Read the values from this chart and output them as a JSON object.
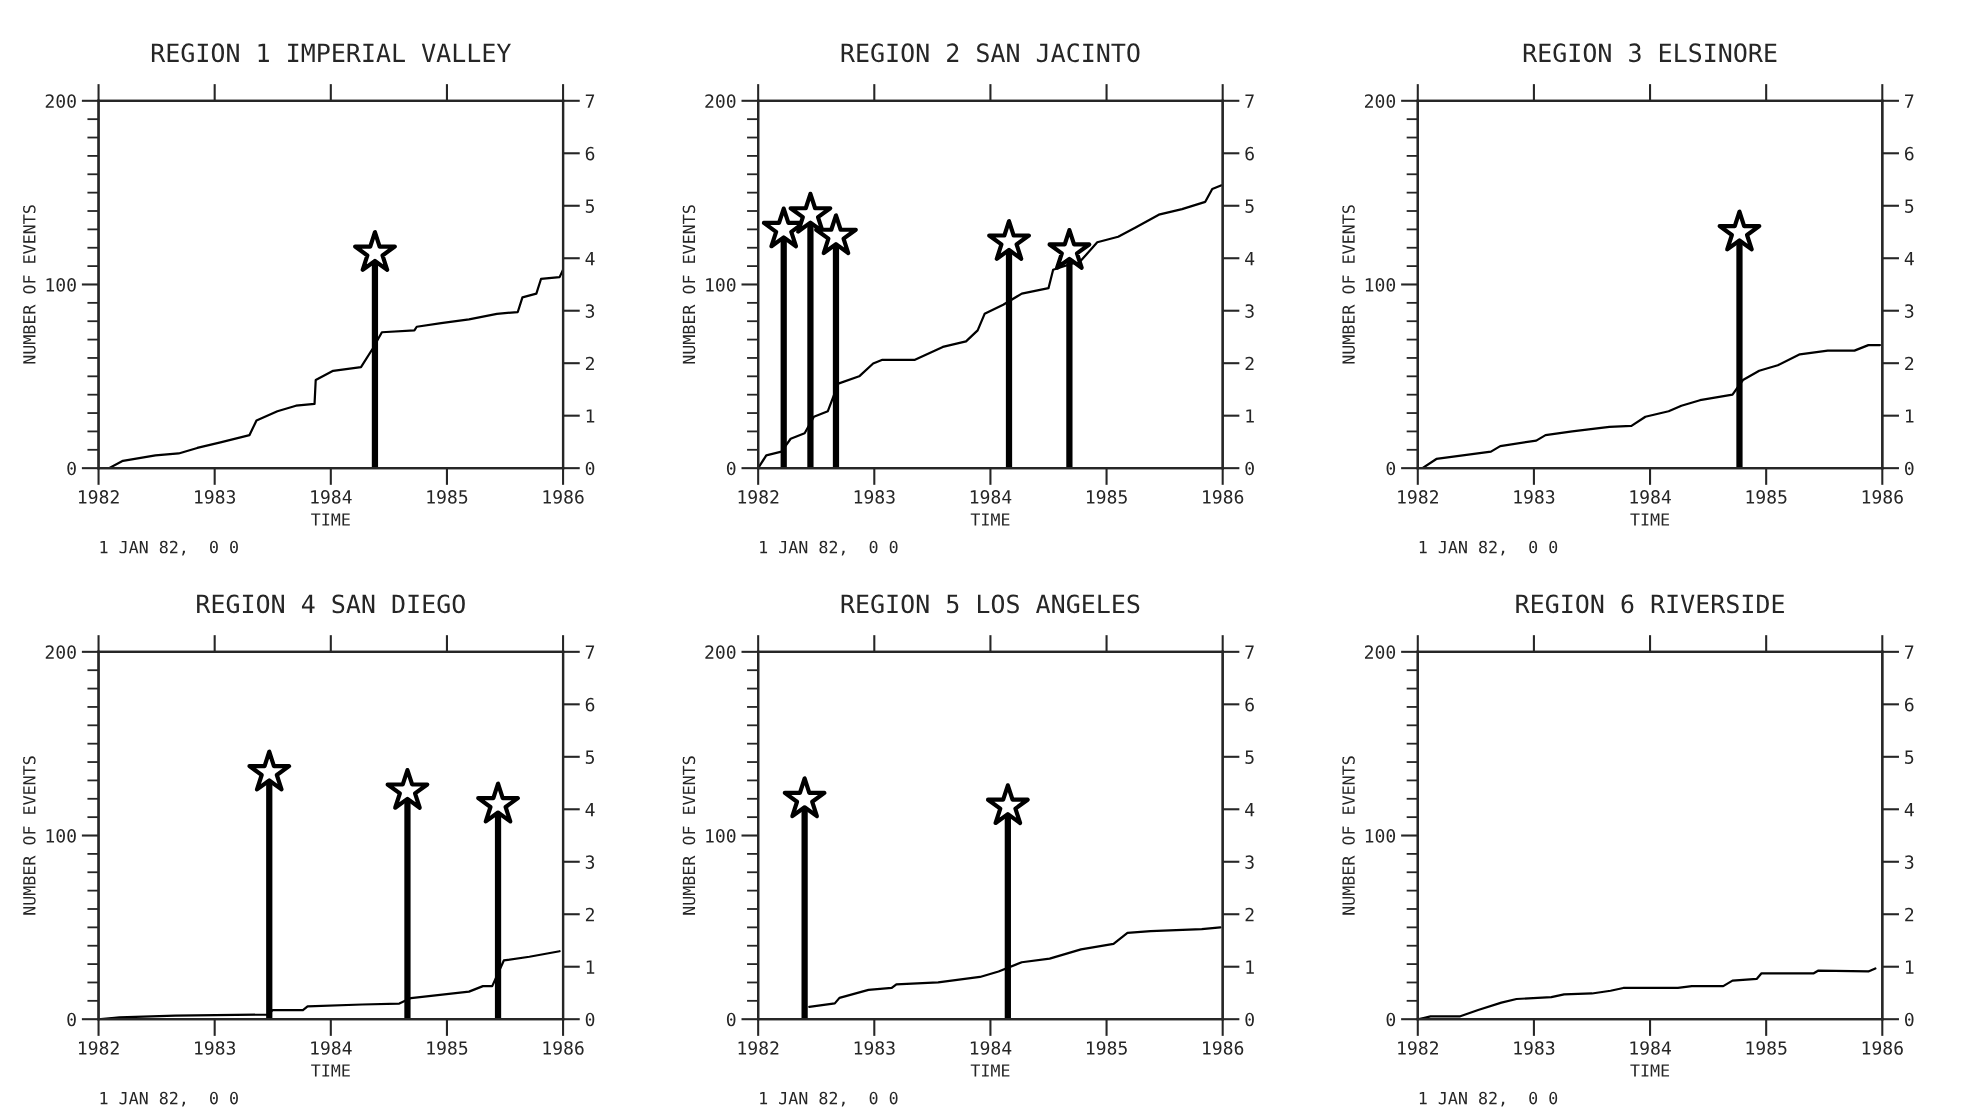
{
  "chart_data": [
    {
      "type": "line",
      "title": "REGION 1 IMPERIAL VALLEY",
      "xlabel": "TIME",
      "ylabel": "NUMBER OF EVENTS",
      "annotations": [
        "1 JAN 82,  0 0"
      ],
      "xlim": [
        1982,
        1986
      ],
      "xticks": [
        1982,
        1983,
        1984,
        1985,
        1986
      ],
      "ylim": [
        0,
        200
      ],
      "yticks": [
        0,
        100,
        200
      ],
      "y2lim": [
        0,
        7
      ],
      "y2ticks": [
        0,
        1,
        2,
        3,
        4,
        5,
        6,
        7
      ],
      "grid": false,
      "legend": false,
      "series": [
        {
          "color": "#000000",
          "marker": "none",
          "line_style": "solid",
          "x": [
            1982.09,
            1982.21,
            1982.49,
            1982.69,
            1982.85,
            1983.05,
            1983.3,
            1983.36,
            1983.54,
            1983.7,
            1983.86,
            1983.87,
            1984.02,
            1984.26,
            1984.36,
            1984.44,
            1984.72,
            1984.74,
            1984.95,
            1985.19,
            1985.43,
            1985.61,
            1985.65,
            1985.77,
            1985.81,
            1985.97,
            1986
          ],
          "values": [
            0,
            4,
            7,
            8,
            11,
            14,
            18,
            26,
            31,
            34,
            35,
            48,
            53,
            55,
            65,
            74,
            75,
            77,
            79,
            81,
            84,
            85,
            93,
            95,
            103,
            104,
            108
          ]
        },
        {
          "type": "lollipop",
          "axis": "y2",
          "color": "#000000",
          "marker": "star",
          "x": [
            1984.38
          ],
          "values": [
            4.1
          ]
        }
      ]
    },
    {
      "type": "line",
      "title": "REGION 2 SAN JACINTO",
      "xlabel": "TIME",
      "ylabel": "NUMBER OF EVENTS",
      "annotations": [
        "1 JAN 82,  0 0"
      ],
      "xlim": [
        1982,
        1986
      ],
      "xticks": [
        1982,
        1983,
        1984,
        1985,
        1986
      ],
      "ylim": [
        0,
        200
      ],
      "yticks": [
        0,
        100,
        200
      ],
      "y2lim": [
        0,
        7
      ],
      "y2ticks": [
        0,
        1,
        2,
        3,
        4,
        5,
        6,
        7
      ],
      "grid": false,
      "legend": false,
      "series": [
        {
          "color": "#000000",
          "marker": "none",
          "line_style": "solid",
          "x": [
            1982.0,
            1982.07,
            1982.2,
            1982.28,
            1982.4,
            1982.48,
            1982.6,
            1982.69,
            1982.87,
            1982.99,
            1983.07,
            1983.35,
            1983.59,
            1983.79,
            1983.89,
            1983.95,
            1984.11,
            1984.27,
            1984.5,
            1984.54,
            1984.78,
            1984.92,
            1985.1,
            1985.25,
            1985.45,
            1985.65,
            1985.85,
            1985.91,
            1985.99
          ],
          "values": [
            0,
            7,
            9,
            16,
            19,
            28,
            31,
            46,
            50,
            57,
            59,
            59,
            66,
            69,
            75,
            84,
            89,
            95,
            98,
            108,
            113,
            123,
            126,
            131,
            138,
            141,
            145,
            152,
            154
          ]
        },
        {
          "type": "lollipop",
          "axis": "y2",
          "color": "#000000",
          "marker": "star",
          "x": [
            1982.22,
            1982.45,
            1982.67,
            1984.16,
            1984.68
          ],
          "values": [
            4.55,
            4.83,
            4.42,
            4.31,
            4.14
          ]
        }
      ]
    },
    {
      "type": "line",
      "title": "REGION 3 ELSINORE",
      "xlabel": "TIME",
      "ylabel": "NUMBER OF EVENTS",
      "annotations": [
        "1 JAN 82,  0 0"
      ],
      "xlim": [
        1982,
        1986
      ],
      "xticks": [
        1982,
        1983,
        1984,
        1985,
        1986
      ],
      "ylim": [
        0,
        200
      ],
      "yticks": [
        0,
        100,
        200
      ],
      "y2lim": [
        0,
        7
      ],
      "y2ticks": [
        0,
        1,
        2,
        3,
        4,
        5,
        6,
        7
      ],
      "grid": false,
      "legend": false,
      "series": [
        {
          "color": "#000000",
          "marker": "none",
          "line_style": "solid",
          "x": [
            1982.04,
            1982.16,
            1982.63,
            1982.71,
            1983.02,
            1983.1,
            1983.33,
            1983.65,
            1983.84,
            1983.96,
            1984.16,
            1984.27,
            1984.43,
            1984.71,
            1984.8,
            1984.94,
            1985.1,
            1985.29,
            1985.53,
            1985.76,
            1985.88,
            1985.98
          ],
          "values": [
            0,
            5,
            9,
            12,
            15,
            18,
            20,
            22.5,
            23,
            28,
            31,
            34,
            37,
            40,
            48,
            53,
            56,
            62,
            64,
            64,
            67,
            67
          ]
        },
        {
          "type": "lollipop",
          "axis": "y2",
          "color": "#000000",
          "marker": "star",
          "x": [
            1984.77
          ],
          "values": [
            4.49
          ]
        }
      ]
    },
    {
      "type": "line",
      "title": "REGION 4 SAN DIEGO",
      "xlabel": "TIME",
      "ylabel": "NUMBER OF EVENTS",
      "annotations": [
        "1 JAN 82,  0 0"
      ],
      "xlim": [
        1982,
        1986
      ],
      "xticks": [
        1982,
        1983,
        1984,
        1985,
        1986
      ],
      "ylim": [
        0,
        200
      ],
      "yticks": [
        0,
        100,
        200
      ],
      "y2lim": [
        0,
        7
      ],
      "y2ticks": [
        0,
        1,
        2,
        3,
        4,
        5,
        6,
        7
      ],
      "grid": false,
      "legend": false,
      "series": [
        {
          "color": "#000000",
          "marker": "none",
          "line_style": "solid",
          "x": [
            1982.02,
            1982.18,
            1982.66,
            1983.46,
            1983.5,
            1983.76,
            1983.8,
            1984.27,
            1984.59,
            1984.69,
            1985.19,
            1985.31,
            1985.39,
            1985.49,
            1985.71,
            1985.97
          ],
          "values": [
            0,
            1,
            2,
            2.5,
            5,
            5,
            7,
            8,
            8.5,
            11.5,
            15,
            18,
            18,
            32,
            34,
            37
          ]
        },
        {
          "type": "lollipop",
          "axis": "y2",
          "color": "#000000",
          "marker": "star",
          "x": [
            1983.47,
            1984.66,
            1985.44
          ],
          "values": [
            4.7,
            4.35,
            4.09
          ]
        }
      ]
    },
    {
      "type": "line",
      "title": "REGION 5 LOS ANGELES",
      "xlabel": "TIME",
      "ylabel": "NUMBER OF EVENTS",
      "annotations": [
        "1 JAN 82,  0 0"
      ],
      "xlim": [
        1982,
        1986
      ],
      "xticks": [
        1982,
        1983,
        1984,
        1985,
        1986
      ],
      "ylim": [
        0,
        200
      ],
      "yticks": [
        0,
        100,
        200
      ],
      "y2lim": [
        0,
        7
      ],
      "y2ticks": [
        0,
        1,
        2,
        3,
        4,
        5,
        6,
        7
      ],
      "grid": false,
      "legend": false,
      "series": [
        {
          "color": "#000000",
          "marker": "none",
          "line_style": "solid",
          "x": [
            1982.44,
            1982.66,
            1982.7,
            1982.95,
            1983.15,
            1983.19,
            1983.55,
            1983.91,
            1984.07,
            1984.27,
            1984.51,
            1984.78,
            1985.06,
            1985.18,
            1985.38,
            1985.82,
            1985.98
          ],
          "values": [
            6.7,
            8.6,
            11.6,
            16,
            17,
            19,
            20,
            23,
            26,
            31,
            33,
            38,
            41,
            47,
            48,
            49,
            50
          ]
        },
        {
          "type": "lollipop",
          "axis": "y2",
          "color": "#000000",
          "marker": "star",
          "x": [
            1982.4,
            1984.15
          ],
          "values": [
            4.19,
            4.06
          ]
        }
      ]
    },
    {
      "type": "line",
      "title": "REGION 6 RIVERSIDE",
      "xlabel": "TIME",
      "ylabel": "NUMBER OF EVENTS",
      "annotations": [
        "1 JAN 82,  0 0"
      ],
      "xlim": [
        1982,
        1986
      ],
      "xticks": [
        1982,
        1983,
        1984,
        1985,
        1986
      ],
      "ylim": [
        0,
        200
      ],
      "yticks": [
        0,
        100,
        200
      ],
      "y2lim": [
        0,
        7
      ],
      "y2ticks": [
        0,
        1,
        2,
        3,
        4,
        5,
        6,
        7
      ],
      "grid": false,
      "legend": false,
      "series": [
        {
          "color": "#000000",
          "marker": "none",
          "line_style": "solid",
          "x": [
            1982.01,
            1982.11,
            1982.36,
            1982.52,
            1982.72,
            1982.85,
            1983.15,
            1983.26,
            1983.5,
            1983.66,
            1983.77,
            1984.24,
            1984.36,
            1984.63,
            1984.71,
            1984.92,
            1984.96,
            1985.41,
            1985.45,
            1985.88,
            1985.94
          ],
          "values": [
            0,
            1.5,
            1.5,
            5,
            9,
            11,
            12,
            13.5,
            14,
            15.5,
            17,
            17,
            18,
            18,
            21,
            22,
            25,
            25,
            26.5,
            26,
            27.6
          ]
        }
      ]
    }
  ]
}
